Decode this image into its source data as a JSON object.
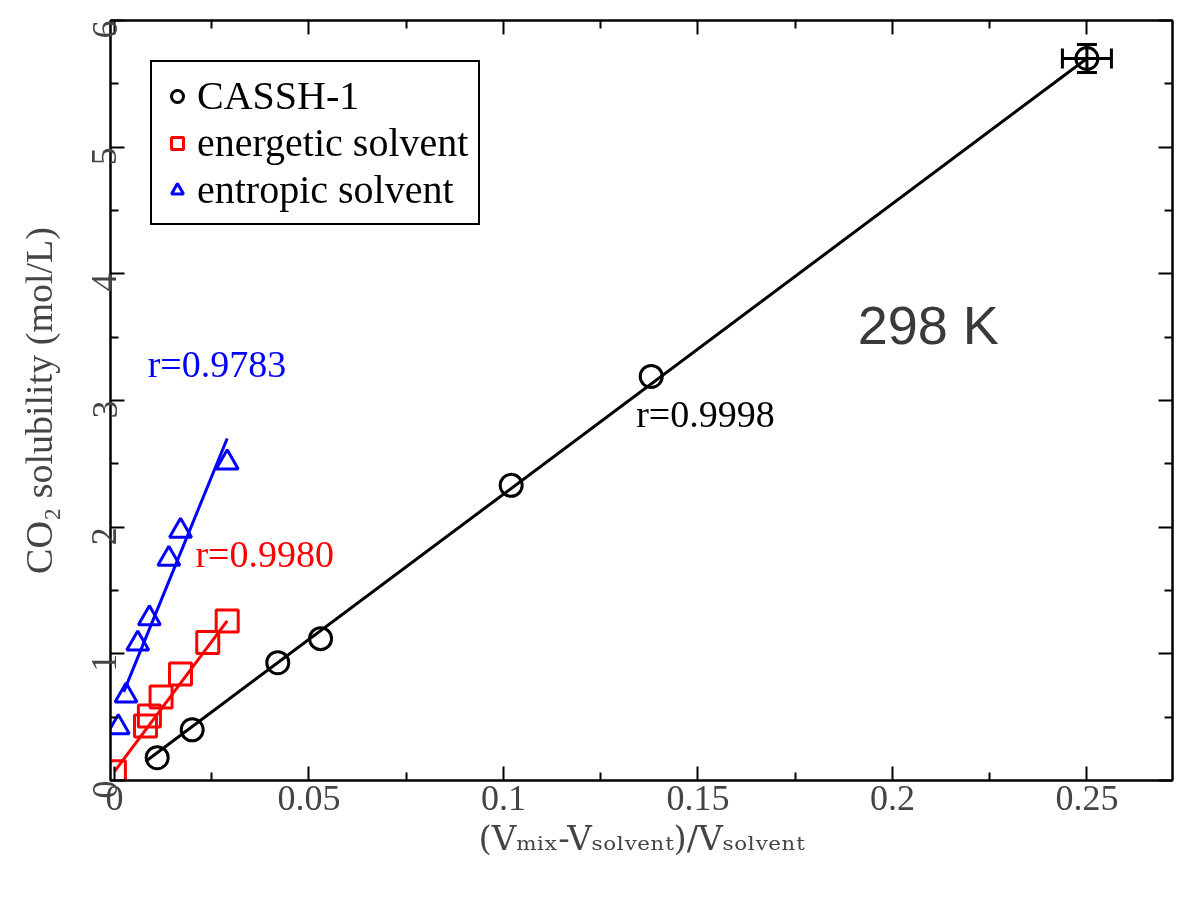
{
  "chart_data": {
    "type": "scatter",
    "xlabel": "(Vₘᵢₓ-Vₛₒₗᵥₑₙₜ)/Vₛₒₗᵥₑₙₜ",
    "ylabel": "CO₂ solubility (mol/L)",
    "xlim": [
      -0.001,
      0.272
    ],
    "ylim": [
      0,
      6
    ],
    "xticks": [
      0,
      {
        "value": 0.025,
        "label": null
      },
      0.05,
      {
        "value": 0.075,
        "label": null
      },
      0.1,
      {
        "value": 0.125,
        "label": null
      },
      0.15,
      {
        "value": 0.175,
        "label": null
      },
      0.2,
      {
        "value": 0.225,
        "label": null
      },
      0.25
    ],
    "yticks": [
      0,
      {
        "value": 0.5,
        "label": null
      },
      1,
      {
        "value": 1.5,
        "label": null
      },
      2,
      {
        "value": 2.5,
        "label": null
      },
      3,
      {
        "value": 3.5,
        "label": null
      },
      4,
      {
        "value": 4.5,
        "label": null
      },
      5,
      {
        "value": 5.5,
        "label": null
      },
      6
    ],
    "grid": false,
    "legend": "top left",
    "series": [
      {
        "name": "CASSH-1",
        "marker": "circle",
        "color": "#000000",
        "x": [
          0.011,
          0.02,
          0.042,
          0.053,
          0.102,
          0.138,
          0.25
        ],
        "values": [
          0.18,
          0.4,
          0.93,
          1.12,
          2.33,
          3.19,
          5.7
        ],
        "errors": [
          null,
          null,
          null,
          null,
          null,
          null,
          0.11
        ],
        "xerrors": [
          null,
          null,
          null,
          null,
          null,
          null,
          0.0063
        ]
      },
      {
        "name": "energetic solvent",
        "marker": "square",
        "color": "#ff0000",
        "x": [
          0.0,
          0.008,
          0.009,
          0.012,
          0.017,
          0.024,
          0.029
        ],
        "values": [
          0.07,
          0.43,
          0.51,
          0.66,
          0.84,
          1.09,
          1.26
        ]
      },
      {
        "name": "entropic solvent",
        "marker": "triangle",
        "color": "#0000ff",
        "x": [
          0.001,
          0.003,
          0.006,
          0.009,
          0.014,
          0.017,
          0.029
        ],
        "values": [
          0.42,
          0.67,
          1.08,
          1.28,
          1.75,
          1.97,
          2.51
        ]
      },
      {
        "type": "line",
        "color": "#0000ff",
        "x": [
          0.0024,
          0.029
        ],
        "values": [
          0.7,
          2.7
        ]
      },
      {
        "type": "line",
        "color": "#ff0000",
        "x": [
          0.0,
          0.029
        ],
        "values": [
          0.07,
          1.26
        ]
      },
      {
        "type": "line",
        "color": "#000000",
        "x": [
          0.008,
          0.25
        ],
        "values": [
          0.15,
          5.7
        ]
      }
    ],
    "annotations": [
      "r=0.9783",
      "r=0.9980",
      "r=0.9998",
      "298 K"
    ]
  }
}
